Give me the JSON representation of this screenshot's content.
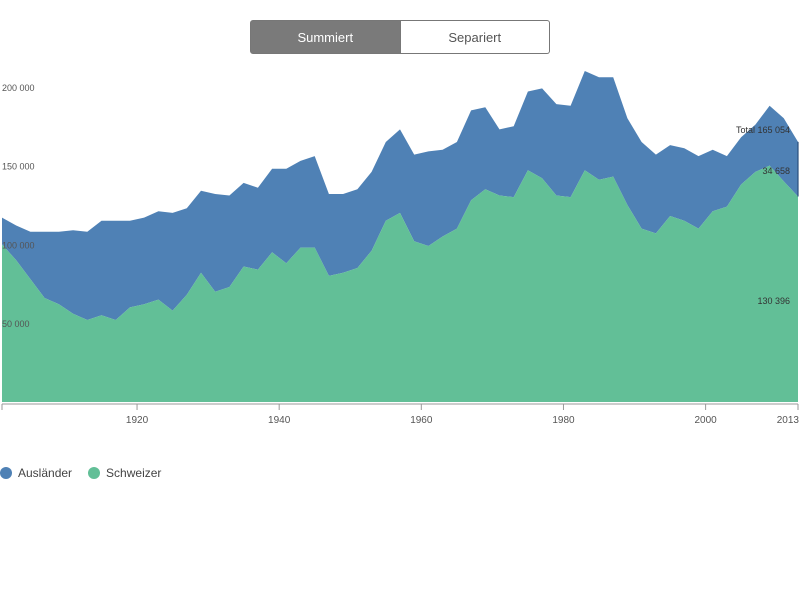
{
  "controls": {
    "summed_label": "Summiert",
    "separate_label": "Separiert",
    "active": "summed"
  },
  "colors": {
    "auslaender": "#4f81b5",
    "schweizer": "#62bf97",
    "axis": "#999999",
    "tick_text": "#555555",
    "annotation_text": "#333333"
  },
  "legend": [
    {
      "label": "Ausländer",
      "color": "#4f81b5"
    },
    {
      "label": "Schweizer",
      "color": "#62bf97"
    }
  ],
  "annotations": {
    "total": "Total 165 054",
    "auslaender": "34 658",
    "schweizer": "130 396"
  },
  "chart_data": {
    "type": "area",
    "stacked": true,
    "x_ticks": [
      1920,
      1940,
      1960,
      1980,
      2000,
      2013
    ],
    "y_ticks": [
      {
        "value": 50000,
        "label": "50 000"
      },
      {
        "value": 100000,
        "label": "100 000"
      },
      {
        "value": 150000,
        "label": "150 000"
      },
      {
        "value": 200000,
        "label": "200 000"
      }
    ],
    "xlim": [
      1901,
      2013
    ],
    "ylim": [
      0,
      250000
    ],
    "grid": false,
    "legend_position": "bottom-left",
    "x": [
      1901,
      1903,
      1905,
      1907,
      1909,
      1911,
      1913,
      1915,
      1917,
      1919,
      1921,
      1923,
      1925,
      1927,
      1929,
      1931,
      1933,
      1935,
      1937,
      1939,
      1941,
      1943,
      1945,
      1947,
      1949,
      1951,
      1953,
      1955,
      1957,
      1959,
      1961,
      1963,
      1965,
      1967,
      1969,
      1971,
      1973,
      1975,
      1977,
      1979,
      1981,
      1983,
      1985,
      1987,
      1989,
      1991,
      1993,
      1995,
      1997,
      1999,
      2001,
      2003,
      2005,
      2007,
      2009,
      2011,
      2013
    ],
    "series": [
      {
        "name": "Schweizer",
        "values": [
          100000,
          90000,
          78000,
          66000,
          62000,
          56000,
          52000,
          55000,
          52000,
          60000,
          62000,
          65000,
          58000,
          68000,
          82000,
          70000,
          73000,
          86000,
          84000,
          95000,
          88000,
          98000,
          98000,
          80000,
          82000,
          85000,
          96000,
          115000,
          120000,
          102000,
          99000,
          105000,
          110000,
          128000,
          135000,
          131000,
          130000,
          147000,
          142000,
          131000,
          130000,
          147000,
          141000,
          143000,
          125000,
          110000,
          107000,
          118000,
          115000,
          110000,
          121000,
          124000,
          138000,
          146000,
          150000,
          140000,
          130396
        ]
      },
      {
        "name": "Ausländer",
        "values": [
          17000,
          22000,
          30000,
          42000,
          46000,
          53000,
          56000,
          60000,
          63000,
          55000,
          55000,
          56000,
          62000,
          55000,
          52000,
          62000,
          58000,
          53000,
          52000,
          53000,
          60000,
          55000,
          58000,
          52000,
          50000,
          50000,
          50000,
          50000,
          53000,
          55000,
          60000,
          55000,
          55000,
          57000,
          52000,
          42000,
          45000,
          50000,
          57000,
          58000,
          58000,
          63000,
          65000,
          63000,
          55000,
          55000,
          50000,
          45000,
          46000,
          46000,
          39000,
          32000,
          30000,
          30000,
          38000,
          40000,
          34658
        ]
      }
    ]
  }
}
